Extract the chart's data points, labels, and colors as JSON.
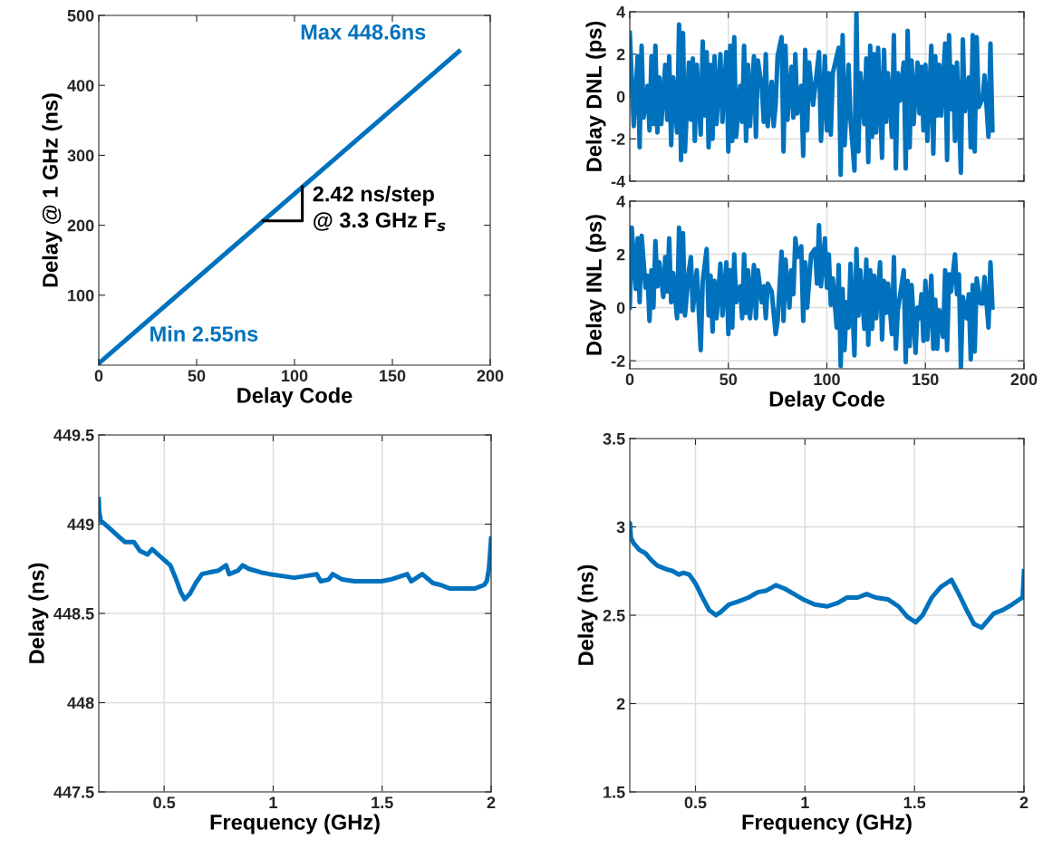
{
  "chart_data": [
    {
      "type": "line",
      "xlabel": "Delay Code",
      "ylabel": "Delay @ 1 GHz (ns)",
      "xlim": [
        0,
        200
      ],
      "ylim": [
        0,
        500
      ],
      "xticks": [
        0,
        50,
        100,
        150,
        200
      ],
      "yticks": [
        100,
        200,
        300,
        400,
        500
      ],
      "grid": false,
      "series": [
        {
          "color": "#0072bd",
          "x": [
            0,
            184
          ],
          "values": [
            2.55,
            448.6
          ]
        }
      ],
      "annotations": [
        {
          "text": "Max 448.6ns",
          "x": 184,
          "y": 448.6
        },
        {
          "text": "Min 2.55ns",
          "x": 0,
          "y": 2.55
        },
        {
          "text": "2.42 ns/step\n@ 3.3 GHz F$_{s}$",
          "x": 104,
          "y": 255
        }
      ]
    },
    {
      "type": "line",
      "ylabel": "Delay DNL (ps)",
      "xlim": [
        0,
        200
      ],
      "ylim": [
        -4,
        4
      ],
      "xticks": [
        0,
        50,
        100,
        150,
        200
      ],
      "yticks": [
        -4,
        -2,
        0,
        2,
        4
      ],
      "grid": true,
      "tick_labels": "y",
      "series": [
        {
          "color": "#0072bd",
          "x": [
            0,
            2,
            4,
            5,
            6,
            7,
            9,
            10,
            11,
            12,
            13,
            14,
            15,
            16,
            18,
            19,
            20,
            21,
            22,
            24,
            25,
            26,
            27,
            28,
            30,
            31,
            32,
            33,
            34,
            36,
            37,
            38,
            39,
            40,
            41,
            42,
            43,
            44,
            46,
            47,
            49,
            50,
            51,
            52,
            53,
            54,
            56,
            57,
            58,
            59,
            60,
            61,
            63,
            64,
            65,
            67,
            68,
            69,
            70,
            72,
            73,
            74,
            75,
            77,
            78,
            79,
            80,
            82,
            83,
            84,
            85,
            87,
            88,
            89,
            90,
            91,
            93,
            96,
            97,
            99,
            100,
            101,
            102,
            103,
            106,
            107,
            108,
            109,
            111,
            112,
            114,
            115,
            116,
            117,
            119,
            120,
            121,
            122,
            123,
            124,
            125,
            126,
            128,
            129,
            130,
            131,
            133,
            134,
            135,
            136,
            137,
            139,
            140,
            141,
            142,
            143,
            144,
            146,
            147,
            148,
            149,
            150,
            151,
            153,
            154,
            155,
            156,
            157,
            158,
            160,
            161,
            162,
            163,
            164,
            165,
            166,
            168,
            169,
            170,
            172,
            173,
            174,
            175,
            176,
            177,
            179,
            180,
            182,
            183,
            184
          ],
          "values": [
            3.0,
            -1.4,
            1.9,
            -2.4,
            2.4,
            -1.0,
            0.5,
            -1.6,
            1.9,
            -1.3,
            2.4,
            -1.7,
            0.9,
            -1.3,
            1.5,
            -1.1,
            1.9,
            -2.3,
            0.9,
            -1.7,
            3.4,
            -3.0,
            3.0,
            -2.6,
            1.6,
            -1.1,
            1.8,
            -2.1,
            1.5,
            -1.8,
            2.6,
            -0.9,
            2.1,
            -2.4,
            1.5,
            -2.0,
            1.9,
            -1.3,
            2.0,
            -1.2,
            2.1,
            -2.6,
            2.4,
            -2.1,
            2.8,
            -1.9,
            0.5,
            -1.2,
            2.4,
            -2.1,
            1.5,
            -1.4,
            1.9,
            -1.9,
            1.7,
            0.4,
            -1.2,
            2.0,
            -1.4,
            0.7,
            -1.4,
            -0.4,
            1.9,
            2.8,
            -2.6,
            2.4,
            -1.1,
            1.4,
            -1.0,
            2.0,
            -0.8,
            0.5,
            -2.8,
            2.2,
            -1.6,
            1.6,
            -0.4,
            2.1,
            -2.1,
            1.9,
            -1.6,
            1.1,
            -1.8,
            1.1,
            2.3,
            -3.7,
            2.9,
            -2.3,
            1.5,
            -1.1,
            -3.5,
            4.0,
            -2.6,
            1.1,
            -1.3,
            1.8,
            -3.1,
            2.4,
            -1.9,
            2.0,
            -1.7,
            2.3,
            -2.9,
            2.2,
            -1.2,
            1.1,
            -1.9,
            2.9,
            -3.4,
            1.1,
            -0.2,
            1.6,
            -3.4,
            3.1,
            -2.4,
            1.7,
            -1.3,
            1.6,
            -0.8,
            1.4,
            -1.6,
            1.5,
            -2.1,
            2.4,
            -2.7,
            1.9,
            -0.9,
            1.5,
            -0.9,
            2.5,
            -3.0,
            2.9,
            -0.6,
            1.4,
            -2.1,
            1.6,
            -3.6,
            2.7,
            -0.7,
            0.9,
            -2.4,
            2.9,
            -2.6,
            2.8,
            -0.5,
            -0.1,
            1.0,
            -1.9,
            2.5,
            -1.6
          ]
        }
      ]
    },
    {
      "type": "line",
      "xlabel": "Delay Code",
      "ylabel": "Delay INL (ps)",
      "xlim": [
        0,
        200
      ],
      "ylim": [
        -2.3,
        4
      ],
      "xticks": [
        0,
        50,
        100,
        150,
        200
      ],
      "yticks": [
        -2,
        0,
        2,
        4
      ],
      "grid": true,
      "series": [
        {
          "color": "#0072bd",
          "x": [
            0,
            1,
            3,
            4,
            5,
            6,
            8,
            9,
            10,
            11,
            12,
            13,
            14,
            15,
            17,
            18,
            19,
            20,
            21,
            22,
            24,
            25,
            26,
            27,
            28,
            30,
            31,
            32,
            34,
            36,
            37,
            39,
            40,
            41,
            42,
            43,
            44,
            46,
            47,
            49,
            50,
            51,
            52,
            53,
            54,
            56,
            57,
            58,
            59,
            60,
            61,
            63,
            64,
            65,
            67,
            68,
            69,
            70,
            72,
            74,
            75,
            77,
            78,
            79,
            81,
            82,
            83,
            84,
            85,
            87,
            88,
            89,
            90,
            92,
            94,
            95,
            96,
            97,
            99,
            100,
            101,
            102,
            103,
            105,
            106,
            107,
            108,
            109,
            110,
            111,
            112,
            114,
            115,
            116,
            117,
            119,
            120,
            121,
            122,
            123,
            124,
            125,
            127,
            128,
            129,
            130,
            131,
            133,
            134,
            135,
            136,
            139,
            140,
            141,
            142,
            143,
            145,
            146,
            147,
            148,
            149,
            150,
            151,
            153,
            154,
            155,
            156,
            157,
            159,
            160,
            161,
            162,
            163,
            165,
            166,
            167,
            168,
            169,
            171,
            172,
            173,
            174,
            175,
            176,
            178,
            179,
            180,
            182,
            183,
            184
          ],
          "values": [
            0,
            3.0,
            0.7,
            2.6,
            0.2,
            2.7,
            0.75,
            1.2,
            -0.5,
            1.4,
            0,
            2.5,
            0.8,
            1.7,
            0.4,
            1.9,
            0.6,
            2.6,
            0.2,
            1.3,
            -0.4,
            3.0,
            -0.15,
            2.8,
            -0.3,
            1.4,
            1.9,
            -0.1,
            1.4,
            -1.6,
            1.0,
            2.2,
            -0.3,
            1.2,
            -0.9,
            1.0,
            -0.4,
            1.65,
            -0.3,
            1.7,
            -1.0,
            1.4,
            -0.75,
            2.0,
            0.2,
            0.8,
            -0.4,
            2.0,
            -0.2,
            1.4,
            -0.4,
            1.6,
            -0.4,
            1.4,
            0.2,
            0.8,
            -0.4,
            0.9,
            0.6,
            -1.0,
            -0.5,
            2.1,
            -0.5,
            1.8,
            0,
            1.4,
            0.5,
            2.6,
            1.9,
            2.3,
            -0.5,
            1.7,
            0,
            2.0,
            2.2,
            0.9,
            3.1,
            0.8,
            2.6,
            0.75,
            2.0,
            0.1,
            1.1,
            -0.75,
            1.6,
            -2.2,
            0.7,
            -1.6,
            0.2,
            -0.75,
            1.65,
            -1.8,
            2.2,
            -0.3,
            1.4,
            -0.8,
            1.8,
            -1.4,
            1.4,
            -0.8,
            1.2,
            -0.4,
            1.7,
            -1.2,
            1.0,
            -0.2,
            0.9,
            -1.0,
            1.9,
            -1.55,
            -0.1,
            1.4,
            -2.05,
            1.0,
            -1.45,
            0.85,
            -1.7,
            0,
            -0.4,
            0.5,
            -1.25,
            1.0,
            -1.2,
            1.2,
            -1.55,
            0.3,
            -1.55,
            -0.1,
            -1.1,
            1.4,
            -1.6,
            1.25,
            0.6,
            2.0,
            0.5,
            1.25,
            -2.25,
            0.4,
            -0.4,
            0.5,
            -1.95,
            0.85,
            -1.65,
            1.1,
            0.15,
            0.15,
            1.15,
            -0.75,
            1.7,
            0
          ]
        }
      ]
    },
    {
      "type": "line",
      "xlabel": "Frequency (GHz)",
      "ylabel": "Delay (ns)",
      "xlim": [
        0.2,
        2
      ],
      "ylim": [
        447.5,
        449.5
      ],
      "xticks": [
        0.5,
        1,
        1.5,
        2
      ],
      "yticks": [
        447.5,
        448,
        448.5,
        449,
        449.5
      ],
      "grid": true,
      "series": [
        {
          "color": "#0072bd",
          "x": [
            0.2,
            0.202,
            0.209,
            0.237,
            0.265,
            0.292,
            0.32,
            0.361,
            0.389,
            0.424,
            0.445,
            0.472,
            0.5,
            0.528,
            0.555,
            0.576,
            0.594,
            0.618,
            0.645,
            0.673,
            0.708,
            0.749,
            0.784,
            0.798,
            0.839,
            0.86,
            0.888,
            0.943,
            0.985,
            1.04,
            1.096,
            1.151,
            1.2,
            1.218,
            1.255,
            1.273,
            1.317,
            1.373,
            1.428,
            1.497,
            1.539,
            1.615,
            1.633,
            1.684,
            1.733,
            1.767,
            1.809,
            1.871,
            1.927,
            1.968,
            1.98,
            1.99,
            2.0
          ],
          "values": [
            449.14,
            449.07,
            449.02,
            448.99,
            448.96,
            448.93,
            448.9,
            448.9,
            448.85,
            448.83,
            448.86,
            448.83,
            448.8,
            448.77,
            448.69,
            448.62,
            448.58,
            448.61,
            448.67,
            448.72,
            448.73,
            448.74,
            448.77,
            448.72,
            448.74,
            448.77,
            448.75,
            448.73,
            448.72,
            448.71,
            448.7,
            448.71,
            448.72,
            448.68,
            448.69,
            448.72,
            448.69,
            448.68,
            448.68,
            448.68,
            448.69,
            448.72,
            448.68,
            448.72,
            448.67,
            448.66,
            448.64,
            448.64,
            448.64,
            448.66,
            448.68,
            448.75,
            448.92
          ]
        }
      ]
    },
    {
      "type": "line",
      "xlabel": "Frequency (GHz)",
      "ylabel": "Delay (ns)",
      "xlim": [
        0.2,
        2
      ],
      "ylim": [
        1.5,
        3.5
      ],
      "xticks": [
        0.5,
        1,
        1.5,
        2
      ],
      "yticks": [
        1.5,
        2,
        2.5,
        3,
        3.5
      ],
      "grid": true,
      "series": [
        {
          "color": "#0072bd",
          "x": [
            0.2,
            0.201,
            0.205,
            0.216,
            0.244,
            0.272,
            0.3,
            0.327,
            0.369,
            0.396,
            0.424,
            0.445,
            0.472,
            0.5,
            0.528,
            0.562,
            0.594,
            0.617,
            0.652,
            0.7,
            0.742,
            0.784,
            0.825,
            0.867,
            0.908,
            0.95,
            0.991,
            1.046,
            1.102,
            1.15,
            1.192,
            1.24,
            1.282,
            1.323,
            1.378,
            1.427,
            1.468,
            1.506,
            1.537,
            1.579,
            1.62,
            1.669,
            1.703,
            1.738,
            1.772,
            1.807,
            1.862,
            1.904,
            1.945,
            1.98,
            1.994,
            2.0
          ],
          "values": [
            2.95,
            3.02,
            2.94,
            2.91,
            2.87,
            2.85,
            2.81,
            2.78,
            2.76,
            2.75,
            2.73,
            2.74,
            2.73,
            2.68,
            2.61,
            2.53,
            2.5,
            2.52,
            2.56,
            2.58,
            2.6,
            2.63,
            2.64,
            2.67,
            2.65,
            2.62,
            2.59,
            2.56,
            2.55,
            2.57,
            2.6,
            2.6,
            2.62,
            2.6,
            2.59,
            2.55,
            2.49,
            2.46,
            2.5,
            2.6,
            2.66,
            2.7,
            2.62,
            2.53,
            2.45,
            2.43,
            2.51,
            2.53,
            2.56,
            2.59,
            2.6,
            2.75
          ]
        }
      ]
    }
  ]
}
